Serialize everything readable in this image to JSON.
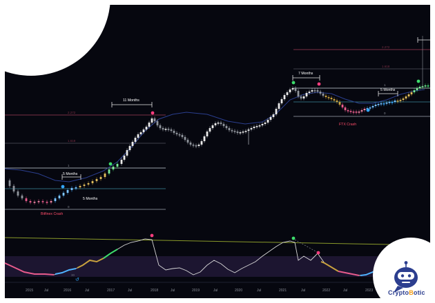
{
  "chart_data": {
    "type": "candlestick",
    "x_tick_labels": [
      "2015",
      "Jul",
      "2016",
      "Jul",
      "2017",
      "Jul",
      "2018",
      "Jul",
      "2019",
      "Jul",
      "2020",
      "Jul",
      "2021",
      "Jul",
      "2022",
      "Jul",
      "2023"
    ],
    "fib_levels": {
      "cycle_2017": [
        "2.272",
        "1.618",
        "1",
        "0"
      ],
      "cycle_2021": [
        "2.272",
        "1.618",
        "1",
        "0"
      ]
    },
    "annotations": {
      "five_months_a": "5 Months",
      "five_months_b": "5 Months",
      "eleven_months": "11 Months",
      "seven_months": "7 Months",
      "five_months_c": "5 Months",
      "bitfinex_crash": "Bitfinex Crash",
      "ftx_crash": "FTX Crash"
    },
    "oscillator_label": "30"
  },
  "brand": {
    "name_prefix": "Crypto",
    "name_o": "B",
    "name_suffix": "otic"
  },
  "colors": {
    "background": "#06070f",
    "bull": "#e8e8e8",
    "bear": "#9aa0a8",
    "ma": "#2b3f8f",
    "fib": "#8a8f98",
    "fib_top": "#7a2f45",
    "crash_label": "#ff4d6a",
    "dot_green": "#3ddc6c",
    "dot_pink": "#ff3d7f",
    "dot_blue": "#35a8ff",
    "osc_line": "#d9d9d9",
    "osc_band": "#1c1530",
    "osc_top_line": "#8a9a2a"
  }
}
